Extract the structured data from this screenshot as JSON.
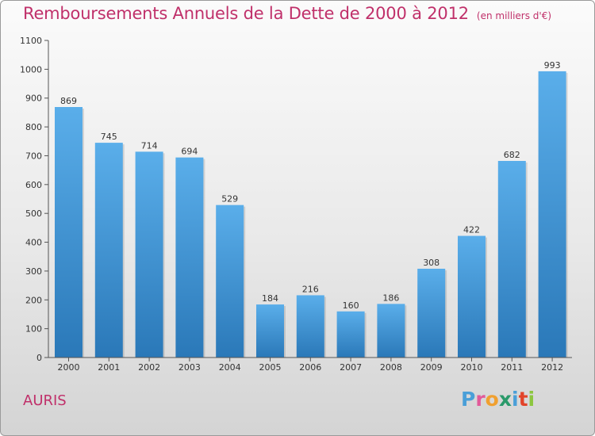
{
  "page": {
    "commune": "AURIS",
    "brand": "Proxiti",
    "brand_colors": [
      "#4a9fd8",
      "#e25a9a",
      "#f0a030",
      "#2a9a6a",
      "#4a9fd8",
      "#e2442a",
      "#8cc63f"
    ]
  },
  "chart_data": {
    "type": "bar",
    "title": "Remboursements Annuels de la Dette de 2000 à 2012",
    "subtitle": "(en milliers d'€)",
    "categories": [
      "2000",
      "2001",
      "2002",
      "2003",
      "2004",
      "2005",
      "2006",
      "2007",
      "2008",
      "2009",
      "2010",
      "2011",
      "2012"
    ],
    "values": [
      869,
      745,
      714,
      694,
      529,
      184,
      216,
      160,
      186,
      308,
      422,
      682,
      993
    ],
    "yticks": [
      0,
      100,
      200,
      300,
      400,
      500,
      600,
      700,
      800,
      900,
      1000,
      1100
    ],
    "ylim": [
      0,
      1100
    ],
    "xlabel": "",
    "ylabel": "",
    "grid": false,
    "bar_color_top": "#5aaeea",
    "bar_color_bottom": "#2a78b8",
    "text_color": "#c0306a"
  }
}
